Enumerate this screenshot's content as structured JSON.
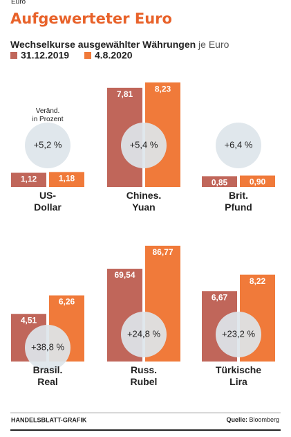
{
  "chart_data": {
    "type": "bar",
    "kicker": "Euro",
    "title": "Aufgewerteter Euro",
    "subtitle": "Wechselkurse ausgewählter Währungen",
    "subtitle_unit": "je Euro",
    "note": "Veränd.\nin Prozent",
    "categories": [
      "US-\nDollar",
      "Chines.\nYuan",
      "Brit.\nPfund",
      "Brasil.\nReal",
      "Russ.\nRubel",
      "Türkische\nLira"
    ],
    "series": [
      {
        "name": "31.12.2019",
        "color": "#c0665a",
        "values": [
          1.12,
          7.81,
          0.85,
          4.51,
          69.54,
          6.67
        ],
        "value_labels": [
          "1,12",
          "7,81",
          "0,85",
          "4,51",
          "69,54",
          "6,67"
        ]
      },
      {
        "name": "4.8.2020",
        "color": "#f07a3a",
        "values": [
          1.18,
          8.23,
          0.9,
          6.26,
          86.77,
          8.22
        ],
        "value_labels": [
          "1,18",
          "8,23",
          "0,90",
          "6,26",
          "86,77",
          "8,22"
        ]
      }
    ],
    "changes": [
      "+5,2 %",
      "+5,4 %",
      "+6,4 %",
      "+38,8 %",
      "+24,8 %",
      "+23,2 %"
    ],
    "panel_ylims": [
      [
        0,
        9
      ],
      [
        0,
        9
      ],
      [
        0,
        9
      ],
      [
        0,
        12
      ],
      [
        0,
        95
      ],
      [
        0,
        12
      ]
    ],
    "footer": "HANDELSBLATT-GRAFIK",
    "source_label": "Quelle:",
    "source": "Bloomberg"
  }
}
